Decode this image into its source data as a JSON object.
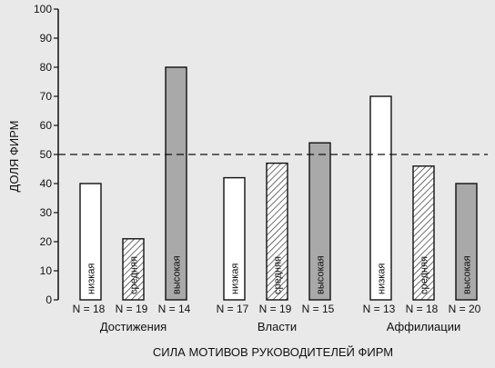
{
  "chart_data": {
    "type": "bar",
    "ylabel": "ДОЛЯ ФИРМ",
    "xlabel": "СИЛА МОТИВОВ РУКОВОДИТЕЛЕЙ ФИРМ",
    "ylim": [
      0,
      100
    ],
    "yticks": [
      0,
      10,
      20,
      30,
      40,
      50,
      60,
      70,
      80,
      90,
      100
    ],
    "reference_line": 50,
    "reference_line_style": "dashed",
    "groups": [
      {
        "name": "Достижения",
        "bars": [
          {
            "level": "низкая",
            "value": 40,
            "n_label": "N = 18",
            "fill": "white"
          },
          {
            "level": "средняя",
            "value": 21,
            "n_label": "N = 19",
            "fill": "hatched"
          },
          {
            "level": "высокая",
            "value": 80,
            "n_label": "N = 14",
            "fill": "gray"
          }
        ]
      },
      {
        "name": "Власти",
        "bars": [
          {
            "level": "низкая",
            "value": 42,
            "n_label": "N = 17",
            "fill": "white"
          },
          {
            "level": "средняя",
            "value": 47,
            "n_label": "N = 19",
            "fill": "hatched"
          },
          {
            "level": "высокая",
            "value": 54,
            "n_label": "N = 15",
            "fill": "gray"
          }
        ]
      },
      {
        "name": "Аффилиации",
        "bars": [
          {
            "level": "низкая",
            "value": 70,
            "n_label": "N = 13",
            "fill": "white"
          },
          {
            "level": "средняя",
            "value": 46,
            "n_label": "N = 18",
            "fill": "hatched"
          },
          {
            "level": "высокая",
            "value": 40,
            "n_label": "N = 20",
            "fill": "gray"
          }
        ]
      }
    ],
    "colors": {
      "background": "#e9e9e9",
      "white_fill": "#ffffff",
      "gray_fill": "#a9a9a9",
      "hatch": "#333333",
      "axis": "#111111"
    }
  }
}
